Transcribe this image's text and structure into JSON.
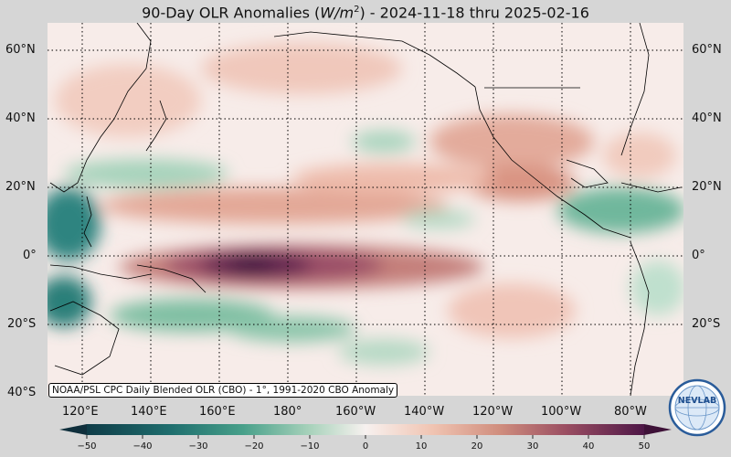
{
  "title": {
    "prefix": "90-Day OLR Anomalies (",
    "unit_base": "W/m",
    "unit_exp": "2",
    "suffix": ") - 2024-11-18 thru 2025-02-16"
  },
  "map": {
    "lat_labels": [
      "60°N",
      "40°N",
      "20°N",
      "0°",
      "20°S",
      "40°S"
    ],
    "lon_labels": [
      "120°E",
      "140°E",
      "160°E",
      "180°",
      "160°W",
      "140°W",
      "120°W",
      "100°W",
      "80°W"
    ],
    "source_text": "NOAA/PSL CPC Daily Blended OLR (CBO) - 1°, 1991-2020 CBO Anomaly"
  },
  "colorbar": {
    "ticks": [
      "−50",
      "−40",
      "−30",
      "−20",
      "−10",
      "0",
      "10",
      "20",
      "30",
      "40",
      "50"
    ],
    "colors": {
      "strong_negative": "#0f3c48",
      "negative": "#2e8a7e",
      "weak_negative": "#9dccb3",
      "neutral": "#f7efec",
      "weak_positive": "#efc2b0",
      "positive": "#c5806f",
      "strong_positive": "#4e1747"
    }
  },
  "logo": {
    "text": "NEVLAB",
    "icon": "globe-logo-icon"
  }
}
